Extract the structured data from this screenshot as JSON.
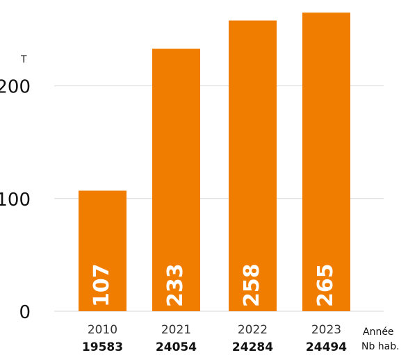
{
  "chart_data": {
    "type": "bar",
    "unit_label": "T",
    "categories": [
      "2010",
      "2021",
      "2022",
      "2023"
    ],
    "values": [
      107,
      233,
      258,
      265
    ],
    "sublabels": [
      "19583",
      "24054",
      "24284",
      "24494"
    ],
    "x_row_label": "Année",
    "sub_row_label": "Nb hab.",
    "yticks": [
      0,
      100,
      200
    ],
    "ylim": [
      0,
      265
    ],
    "bar_color": "#F07D00",
    "grid": true
  }
}
